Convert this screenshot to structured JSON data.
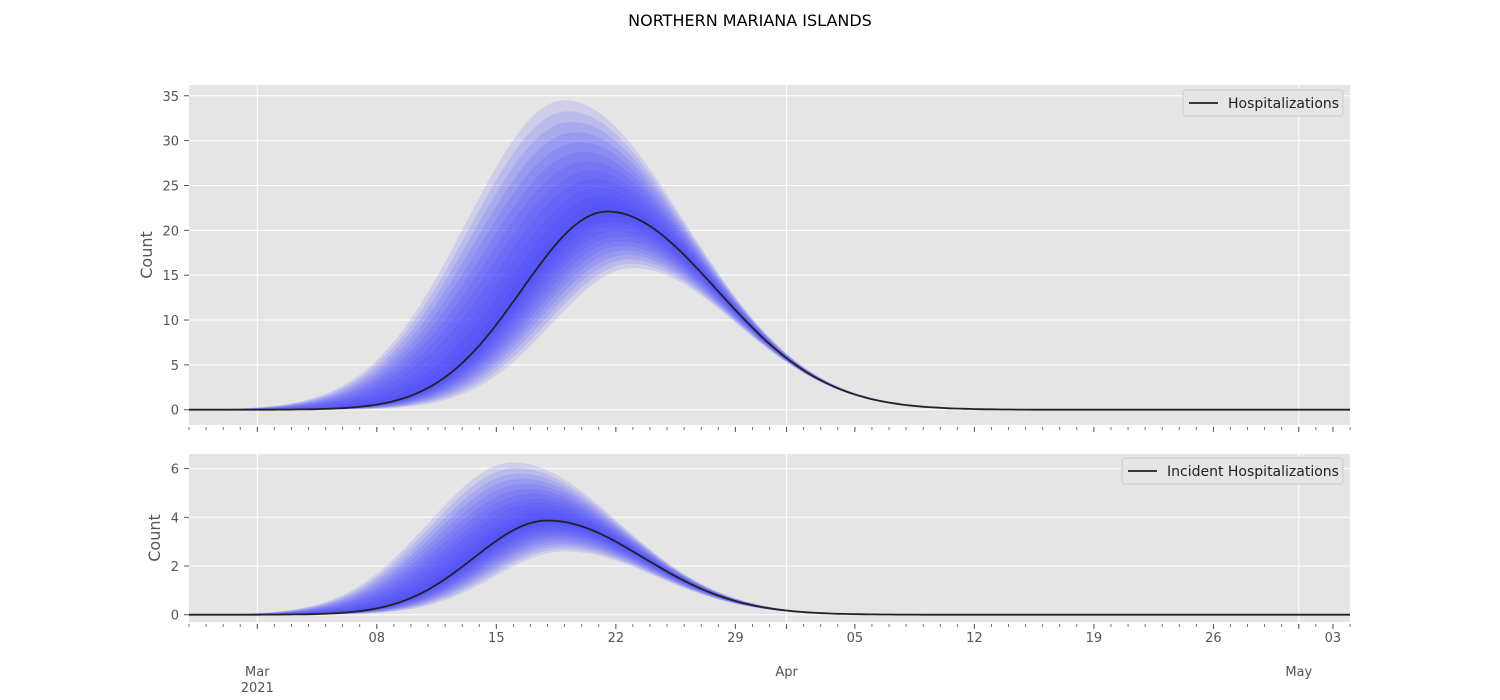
{
  "figure_title": "NORTHERN MARIANA ISLANDS",
  "colors": {
    "panel_bg": "#e5e5e5",
    "grid": "#ffffff",
    "band": "#3c3cff",
    "median_line": "#222222",
    "tick_text": "#555555"
  },
  "x_axis": {
    "day_ticks": [
      {
        "date": "2021-03-08",
        "label": "08"
      },
      {
        "date": "2021-03-15",
        "label": "15"
      },
      {
        "date": "2021-03-22",
        "label": "22"
      },
      {
        "date": "2021-03-29",
        "label": "29"
      },
      {
        "date": "2021-04-05",
        "label": "05"
      },
      {
        "date": "2021-04-12",
        "label": "12"
      },
      {
        "date": "2021-04-19",
        "label": "19"
      },
      {
        "date": "2021-04-26",
        "label": "26"
      },
      {
        "date": "2021-05-03",
        "label": "03"
      }
    ],
    "month_ticks": [
      {
        "date": "2021-03-01",
        "label": "Mar",
        "sublabel": "2021"
      },
      {
        "date": "2021-04-01",
        "label": "Apr",
        "sublabel": ""
      },
      {
        "date": "2021-05-01",
        "label": "May",
        "sublabel": ""
      }
    ],
    "range": [
      "2021-02-25",
      "2021-05-04"
    ]
  },
  "chart_data": [
    {
      "type": "area",
      "ylabel": "Count",
      "legend": "Hospitalizations",
      "legend_position": "top-right",
      "grid": true,
      "ylim": [
        -1.7,
        36.2
      ],
      "yticks": [
        0,
        5,
        10,
        15,
        20,
        25,
        30,
        35
      ],
      "median": {
        "start": "2021-02-25",
        "peak_date": "2021-03-21.5",
        "peak": 22.1,
        "rise_width_days": 5.0,
        "fall_width_days": 6.4
      },
      "band_edges": {
        "upper_peak": 34.5,
        "upper_peak_date": "2021-03-19",
        "lower_peak": 15.8,
        "lower_peak_date": "2021-03-23"
      },
      "bands": 12,
      "series": [
        {
          "name": "Hospitalizations"
        }
      ]
    },
    {
      "type": "area",
      "ylabel": "Count",
      "legend": "Incident Hospitalizations",
      "legend_position": "top-right",
      "grid": true,
      "ylim": [
        -0.3,
        6.6
      ],
      "yticks": [
        0,
        2,
        4,
        6
      ],
      "median": {
        "start": "2021-02-25",
        "peak_date": "2021-03-18",
        "peak": 3.87,
        "rise_width_days": 4.3,
        "fall_width_days": 5.6
      },
      "band_edges": {
        "upper_peak": 6.25,
        "upper_peak_date": "2021-03-16",
        "lower_peak": 2.6,
        "lower_peak_date": "2021-03-19"
      },
      "bands": 12,
      "series": [
        {
          "name": "Incident Hospitalizations"
        }
      ]
    }
  ]
}
